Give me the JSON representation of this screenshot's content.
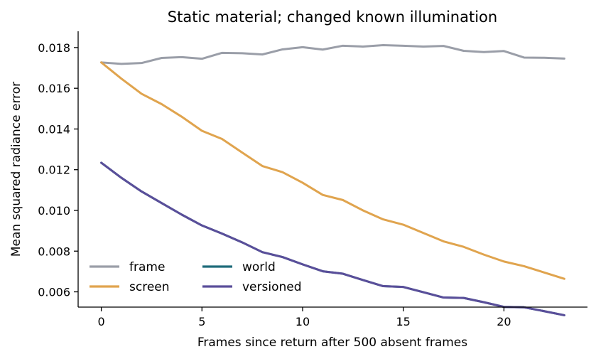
{
  "chart_data": {
    "type": "line",
    "title": "Static material; changed known illumination",
    "xlabel": "Frames since return after 500 absent frames",
    "ylabel": "Mean squared radiance error",
    "xlim": [
      -1.15,
      24.15
    ],
    "ylim": [
      0.00525,
      0.0188
    ],
    "xticks": [
      0,
      5,
      10,
      15,
      20
    ],
    "xtick_labels": [
      "0",
      "5",
      "10",
      "15",
      "20"
    ],
    "yticks": [
      0.006,
      0.008,
      0.01,
      0.012,
      0.014,
      0.016,
      0.018
    ],
    "ytick_labels": [
      "0.006",
      "0.008",
      "0.010",
      "0.012",
      "0.014",
      "0.016",
      "0.018"
    ],
    "grid": false,
    "legend_position": "lower-left",
    "x": [
      0,
      1,
      2,
      3,
      4,
      5,
      6,
      7,
      8,
      9,
      10,
      11,
      12,
      13,
      14,
      15,
      16,
      17,
      18,
      19,
      20,
      21,
      22,
      23
    ],
    "series": [
      {
        "name": "frame",
        "color": "#9a9ea8",
        "values": [
          0.01727,
          0.0172,
          0.01724,
          0.01749,
          0.01753,
          0.01745,
          0.01774,
          0.01772,
          0.01766,
          0.01791,
          0.01802,
          0.0179,
          0.01809,
          0.01805,
          0.01812,
          0.01809,
          0.01805,
          0.01808,
          0.01784,
          0.01778,
          0.01783,
          0.01751,
          0.0175,
          0.01746
        ]
      },
      {
        "name": "screen",
        "color": "#e0a44e",
        "values": [
          0.01727,
          0.01647,
          0.01573,
          0.01522,
          0.0146,
          0.01391,
          0.01351,
          0.01284,
          0.01218,
          0.01188,
          0.01136,
          0.01076,
          0.01051,
          0.01,
          0.00956,
          0.0093,
          0.00889,
          0.00848,
          0.00821,
          0.00783,
          0.00749,
          0.00726,
          0.00695,
          0.00664
        ]
      },
      {
        "name": "world",
        "color": "#1f6b7a",
        "values": [
          0.01234,
          0.0116,
          0.01093,
          0.01036,
          0.00979,
          0.00926,
          0.00886,
          0.00843,
          0.00795,
          0.00771,
          0.00735,
          0.00701,
          0.00689,
          0.00658,
          0.00628,
          0.00624,
          0.00598,
          0.00572,
          0.0057,
          0.00549,
          0.00526,
          0.00524,
          0.00505,
          0.00485
        ]
      },
      {
        "name": "versioned",
        "color": "#5a4e9a",
        "values": [
          0.01234,
          0.0116,
          0.01093,
          0.01036,
          0.00979,
          0.00926,
          0.00886,
          0.00843,
          0.00795,
          0.00771,
          0.00735,
          0.00701,
          0.00689,
          0.00658,
          0.00628,
          0.00624,
          0.00598,
          0.00572,
          0.0057,
          0.00549,
          0.00526,
          0.00524,
          0.00505,
          0.00485
        ]
      }
    ]
  }
}
